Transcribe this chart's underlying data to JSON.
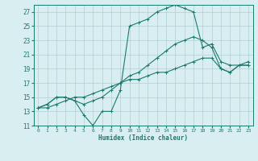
{
  "title": "",
  "xlabel": "Humidex (Indice chaleur)",
  "ylabel": "",
  "bg_color": "#d8eef0",
  "grid_color": "#b0cfd4",
  "line_color": "#1a7a6e",
  "xlim": [
    -0.5,
    23.5
  ],
  "ylim": [
    11,
    28
  ],
  "xticks": [
    0,
    1,
    2,
    3,
    4,
    5,
    6,
    7,
    8,
    9,
    10,
    11,
    12,
    13,
    14,
    15,
    16,
    17,
    18,
    19,
    20,
    21,
    22,
    23
  ],
  "yticks": [
    11,
    13,
    15,
    17,
    19,
    21,
    23,
    25,
    27
  ],
  "series": [
    [
      13.5,
      14.0,
      15.0,
      15.0,
      14.5,
      12.5,
      11.0,
      13.0,
      13.0,
      16.0,
      25.0,
      25.5,
      26.0,
      27.0,
      27.5,
      28.0,
      27.5,
      27.0,
      22.0,
      22.5,
      20.0,
      19.5,
      19.5,
      19.5
    ],
    [
      13.5,
      14.0,
      15.0,
      15.0,
      14.5,
      14.0,
      14.5,
      15.0,
      16.0,
      17.0,
      18.0,
      18.5,
      19.5,
      20.5,
      21.5,
      22.5,
      23.0,
      23.5,
      23.0,
      22.0,
      19.0,
      18.5,
      19.5,
      20.0
    ],
    [
      13.5,
      13.5,
      14.0,
      14.5,
      15.0,
      15.0,
      15.5,
      16.0,
      16.5,
      17.0,
      17.5,
      17.5,
      18.0,
      18.5,
      18.5,
      19.0,
      19.5,
      20.0,
      20.5,
      20.5,
      19.0,
      18.5,
      19.5,
      19.5
    ]
  ]
}
